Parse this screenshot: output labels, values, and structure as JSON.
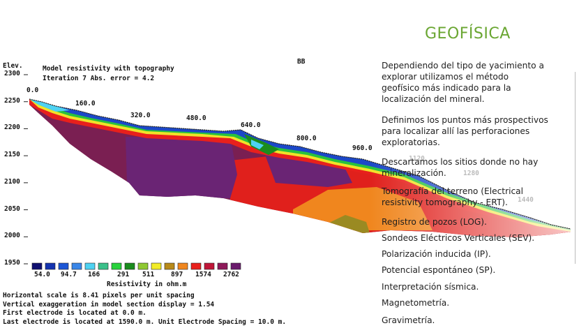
{
  "heading": "GEOFÍSICA",
  "section_label": "BB",
  "elevation": {
    "axis_title": "Elev.",
    "ticks": [
      {
        "label": "2300",
        "value": 2300
      },
      {
        "label": "2250",
        "value": 2250
      },
      {
        "label": "2200",
        "value": 2200
      },
      {
        "label": "2150",
        "value": 2150
      },
      {
        "label": "2100",
        "value": 2100
      },
      {
        "label": "2050",
        "value": 2050
      },
      {
        "label": "2000",
        "value": 2000
      },
      {
        "label": "1950",
        "value": 1950
      }
    ]
  },
  "model": {
    "title": "Model resistivity with topography",
    "iteration": "Iteration 7 Abs. error = 4.2"
  },
  "distance_labels": [
    "0.0",
    "160.0",
    "320.0",
    "480.0",
    "640.0",
    "800.0",
    "960.0",
    "1120",
    "1280",
    "1440"
  ],
  "scale": {
    "colors": [
      "#101070",
      "#1434b0",
      "#1c56d6",
      "#3a86e8",
      "#4ed2f2",
      "#3ac08a",
      "#28d23c",
      "#1a8c1e",
      "#8ec832",
      "#f2ec28",
      "#b88a1a",
      "#f0861e",
      "#e8201c",
      "#c01638",
      "#8e1a5a",
      "#6a1a6c"
    ],
    "value_labels": [
      "54.0",
      "94.7",
      "166",
      "291",
      "511",
      "897",
      "1574",
      "2762"
    ],
    "title": "Resistivity in ohm.m"
  },
  "footer_lines": [
    "Horizontal scale is 8.41 pixels per unit spacing",
    "Vertical exaggeration in model section display = 1.54",
    "First electrode is located at 0.0  m.",
    "Last electrode is located at 1590.0 m.   Unit Electrode Spacing = 10.0 m."
  ],
  "paragraphs": [
    "Dependiendo del tipo de yacimiento  a explorar utilizamos el método geofísico más indicado para la localización del mineral.",
    "Definimos los puntos más prospectivos para localizar allí las perforaciones exploratorias.",
    "Descartamos los sitios donde no hay mineralización.",
    "Tomografía del terreno (Electrical resistivity tomography - ERT)."
  ],
  "methods": [
    "Registro de pozos (LOG).",
    "Sondeos Eléctricos Verticales (SEV).",
    "Polarización inducida (IP).",
    "Potencial espontáneo (SP).",
    "Interpretación sísmica.",
    "Magnetometría.",
    "Gravimetría."
  ]
}
